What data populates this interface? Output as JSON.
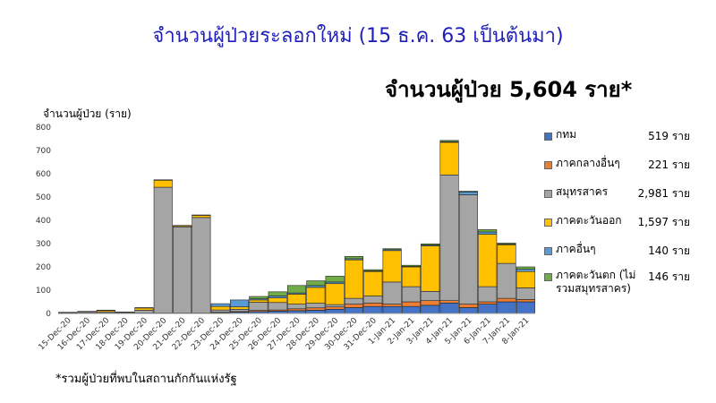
{
  "title": "จำนวนผู้ป่วยระลอกใหม่ (15 ธ.ค. 63 เป็นต้นมา)",
  "headline": "จำนวนผู้ป่วย 5,604 ราย*",
  "footnote": "*รวมผู้ป่วยที่พบในสถานกักกันแห่งรัฐ",
  "chart_data": {
    "type": "bar",
    "stacked": true,
    "ylabel": "จำนวนผู้ป่วย (ราย)",
    "ylim": [
      0,
      800
    ],
    "yticks": [
      0,
      100,
      200,
      300,
      400,
      500,
      600,
      700,
      800
    ],
    "categories": [
      "15-Dec-20",
      "16-Dec-20",
      "17-Dec-20",
      "18-Dec-20",
      "19-Dec-20",
      "20-Dec-20",
      "21-Dec-20",
      "22-Dec-20",
      "23-Dec-20",
      "24-Dec-20",
      "25-Dec-20",
      "26-Dec-20",
      "27-Dec-20",
      "28-Dec-20",
      "29-Dec-20",
      "30-Dec-20",
      "31-Dec-20",
      "1-Jan-21",
      "2-Jan-21",
      "3-Jan-21",
      "4-Jan-21",
      "5-Jan-21",
      "6-Jan-21",
      "7-Jan-21",
      "8-Jan-21"
    ],
    "series": [
      {
        "name": "กทม",
        "color": "#4472c4",
        "total_label": "519 ราย",
        "values": [
          1,
          2,
          2,
          2,
          2,
          2,
          2,
          2,
          3,
          5,
          8,
          10,
          12,
          14,
          18,
          25,
          30,
          30,
          30,
          35,
          45,
          25,
          40,
          50,
          50
        ]
      },
      {
        "name": "ภาคกลางอื่นๆ",
        "color": "#ed7d31",
        "total_label": "221 ราย",
        "values": [
          0,
          0,
          0,
          0,
          0,
          0,
          0,
          0,
          2,
          3,
          5,
          5,
          8,
          10,
          10,
          15,
          15,
          10,
          20,
          20,
          10,
          15,
          10,
          15,
          10
        ]
      },
      {
        "name": "สมุทรสาคร",
        "color": "#a5a5a5",
        "total_label": "2,981 ราย",
        "values": [
          3,
          5,
          5,
          3,
          12,
          540,
          370,
          410,
          10,
          10,
          35,
          32,
          20,
          20,
          10,
          25,
          30,
          95,
          65,
          40,
          540,
          470,
          65,
          150,
          50
        ]
      },
      {
        "name": "ภาคตะวันออก",
        "color": "#ffc000",
        "total_label": "1,597 ราย",
        "values": [
          0,
          0,
          6,
          0,
          10,
          30,
          5,
          10,
          15,
          10,
          10,
          20,
          43,
          68,
          90,
          165,
          105,
          135,
          85,
          195,
          140,
          0,
          225,
          80,
          70
        ]
      },
      {
        "name": "ภาคอื่นๆ",
        "color": "#5b9bd5",
        "total_label": "140 ราย",
        "values": [
          1,
          2,
          1,
          1,
          1,
          2,
          1,
          1,
          12,
          30,
          5,
          8,
          5,
          8,
          7,
          5,
          3,
          4,
          2,
          4,
          3,
          12,
          10,
          3,
          10
        ]
      },
      {
        "name": "ภาคตะวันตก (ไม่รวมสมุทรสาคร)",
        "color": "#70ad47",
        "total_label": "146 ราย",
        "values": [
          0,
          0,
          0,
          0,
          0,
          0,
          0,
          0,
          0,
          0,
          10,
          18,
          32,
          20,
          25,
          10,
          5,
          4,
          5,
          5,
          5,
          3,
          10,
          4,
          10
        ]
      }
    ],
    "legend_position": "right",
    "grid": false
  }
}
